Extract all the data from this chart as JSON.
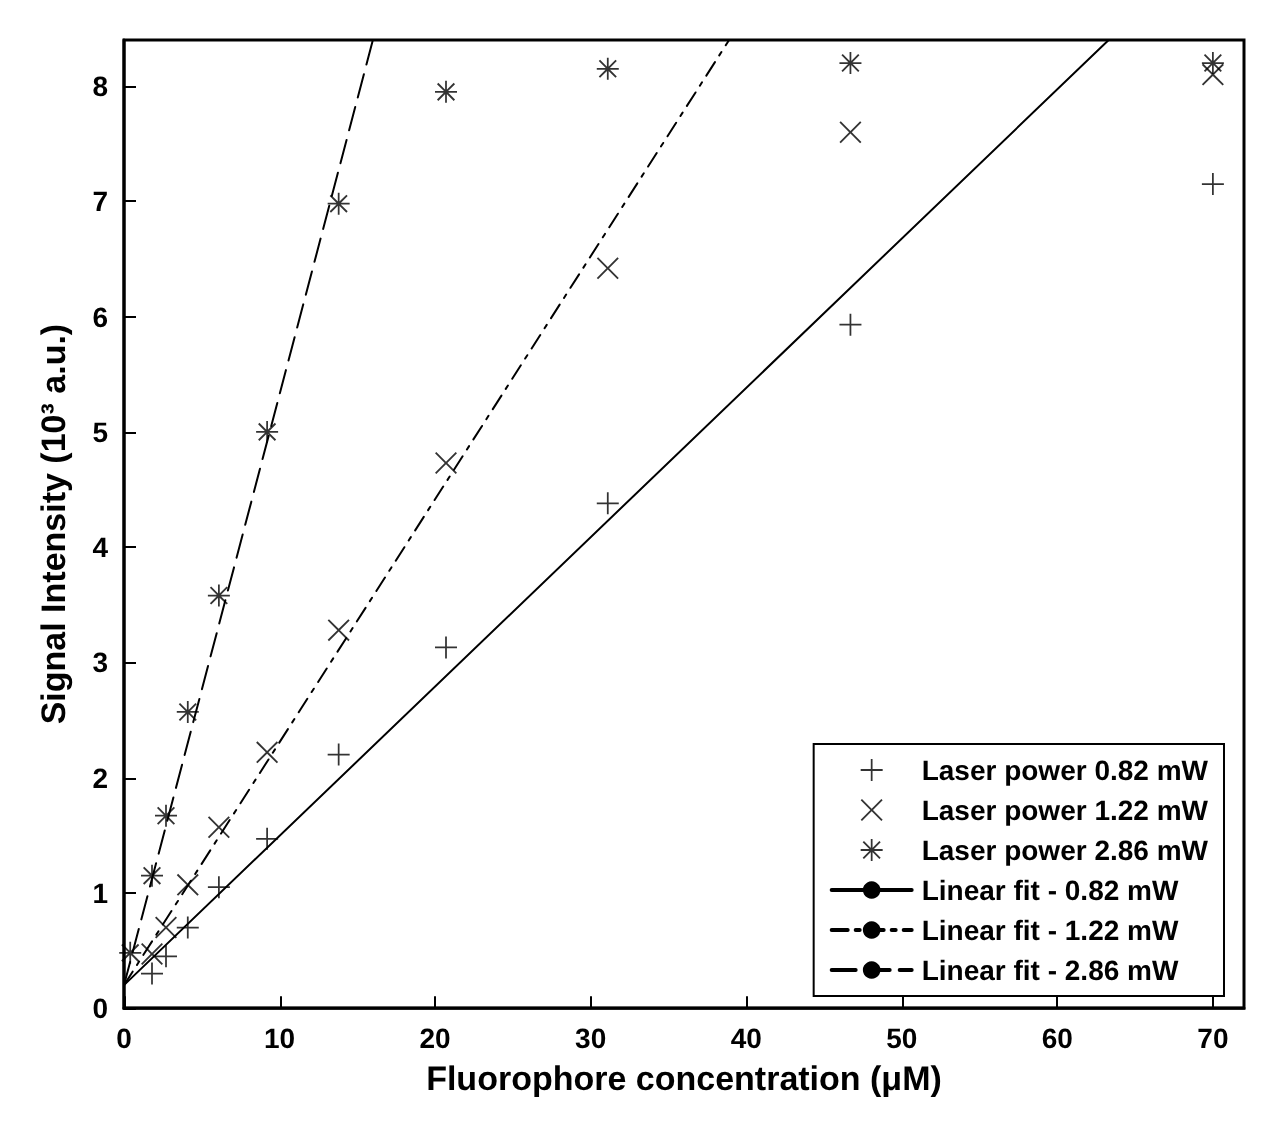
{
  "chart_data": {
    "type": "scatter",
    "xlabel": "Fluorophore concentration (μM)",
    "ylabel": "Signal Intensity (10³ a.u.)",
    "xlim": [
      0,
      72
    ],
    "xticks": [
      0,
      10,
      20,
      30,
      40,
      50,
      60,
      70
    ],
    "ylim": [
      0,
      8.4
    ],
    "yticks": [
      0,
      1,
      2,
      3,
      4,
      5,
      6,
      7,
      8
    ],
    "grid": false,
    "legend": "bottom right",
    "series": [
      {
        "name": "Laser power 0.82 mW",
        "color": "#000000",
        "marker": "plus",
        "x": [
          1.8,
          2.7,
          4.1,
          6.1,
          9.2,
          13.8,
          20.7,
          31.1,
          46.7,
          70
        ],
        "values": [
          0.3,
          0.45,
          0.7,
          1.05,
          1.47,
          2.2,
          3.13,
          4.38,
          5.93,
          7.15
        ]
      },
      {
        "name": "Laser power 1.22 mW",
        "color": "#000000",
        "marker": "cross",
        "x": [
          1.8,
          2.7,
          4.1,
          6.1,
          9.2,
          13.8,
          20.7,
          31.1,
          46.7,
          70
        ],
        "values": [
          0.47,
          0.7,
          1.07,
          1.57,
          2.22,
          3.28,
          4.73,
          6.42,
          7.6,
          8.1
        ]
      },
      {
        "name": "Laser power 2.86 mW",
        "color": "#000000",
        "marker": "star",
        "x": [
          0.4,
          1.8,
          2.7,
          4.1,
          6.1,
          9.2,
          13.8,
          20.7,
          31.1,
          46.7,
          70
        ],
        "values": [
          0.48,
          1.15,
          1.67,
          2.57,
          3.58,
          5.0,
          6.98,
          7.95,
          8.15,
          8.2,
          8.2
        ]
      },
      {
        "name": "Linear fit - 0.82 mW",
        "type": "line",
        "color": "#000000",
        "marker": "none",
        "line_style": "solid",
        "x": [
          0,
          63.3
        ],
        "values": [
          0.2,
          8.4
        ]
      },
      {
        "name": "Linear fit - 1.22 mW",
        "type": "line",
        "color": "#000000",
        "marker": "none",
        "line_style": "dashdot",
        "x": [
          0,
          38.9
        ],
        "values": [
          0.2,
          8.4
        ]
      },
      {
        "name": "Linear fit - 2.86 mW",
        "type": "line",
        "color": "#000000",
        "marker": "none",
        "line_style": "dashed",
        "x": [
          0,
          16
        ],
        "values": [
          0.2,
          8.4
        ]
      }
    ]
  }
}
